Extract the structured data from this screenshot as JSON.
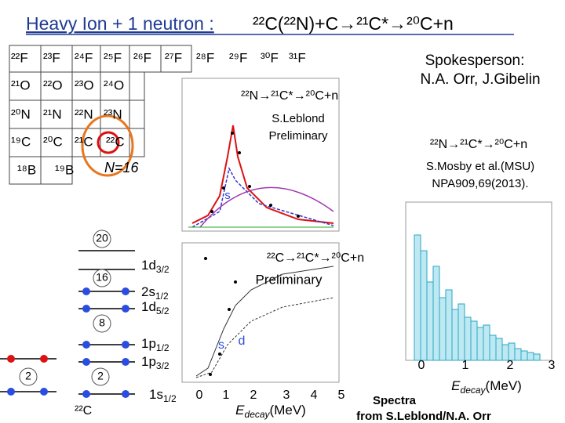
{
  "header": {
    "title": "Heavy Ion + 1 neutron :",
    "reaction": "²²C(²²N)+C→²¹C*→²⁰C+n"
  },
  "spokesperson": {
    "label": "Spokesperson:",
    "names": "N.A. Orr, J.Gibelin"
  },
  "nuclide_chart": {
    "rows": [
      [
        "²²F",
        "²³F",
        "²⁴F",
        "²⁵F",
        "²⁶F",
        "²⁷F",
        "²⁸F",
        "²⁹F",
        "³⁰F",
        "³¹F"
      ],
      [
        "²¹O",
        "²²O",
        "²³O",
        "²⁴O"
      ],
      [
        "²⁰N",
        "²¹N",
        "²²N",
        "²³N"
      ],
      [
        "¹⁹C",
        "²⁰C",
        "²¹C",
        "²²C"
      ],
      [
        "¹⁸B",
        "¹⁹B"
      ]
    ],
    "label": "N=16"
  },
  "top_plot": {
    "reaction": "²²N→²¹C*→²⁰C+n",
    "credit": "S.Leblond",
    "status": "Preliminary",
    "state": "s"
  },
  "mosby_plot": {
    "reaction": "²²N→²¹C*→²⁰C+n",
    "reference": "S.Mosby et al.(MSU)",
    "journal": "NPA909,69(2013).",
    "xticks": [
      "0",
      "1",
      "2",
      "3"
    ],
    "xlabel": {
      "symbol": "E",
      "subscript": "decay",
      "unit": "(MeV)"
    }
  },
  "shell_model": {
    "magic_numbers": [
      "20",
      "16",
      "8",
      "2",
      "2"
    ],
    "levels": [
      {
        "orbital": "1d",
        "j": "3/2"
      },
      {
        "orbital": "2s",
        "j": "1/2"
      },
      {
        "orbital": "1d",
        "j": "5/2"
      },
      {
        "orbital": "1p",
        "j": "1/2"
      },
      {
        "orbital": "1p",
        "j": "3/2"
      },
      {
        "orbital": "1s",
        "j": "1/2"
      }
    ],
    "nucleus": "²²C"
  },
  "bottom_plot": {
    "reaction": "²²C→²¹C*→²⁰C+n",
    "status": "Preliminary",
    "states": [
      "s",
      "d"
    ],
    "xticks": [
      "0",
      "1",
      "2",
      "3",
      "4",
      "5"
    ],
    "xlabel": {
      "symbol": "E",
      "subscript": "decay",
      "unit": "(MeV)"
    }
  },
  "footer": {
    "line1": "Spectra",
    "line2": "from S.Leblond/N.A. Orr"
  }
}
